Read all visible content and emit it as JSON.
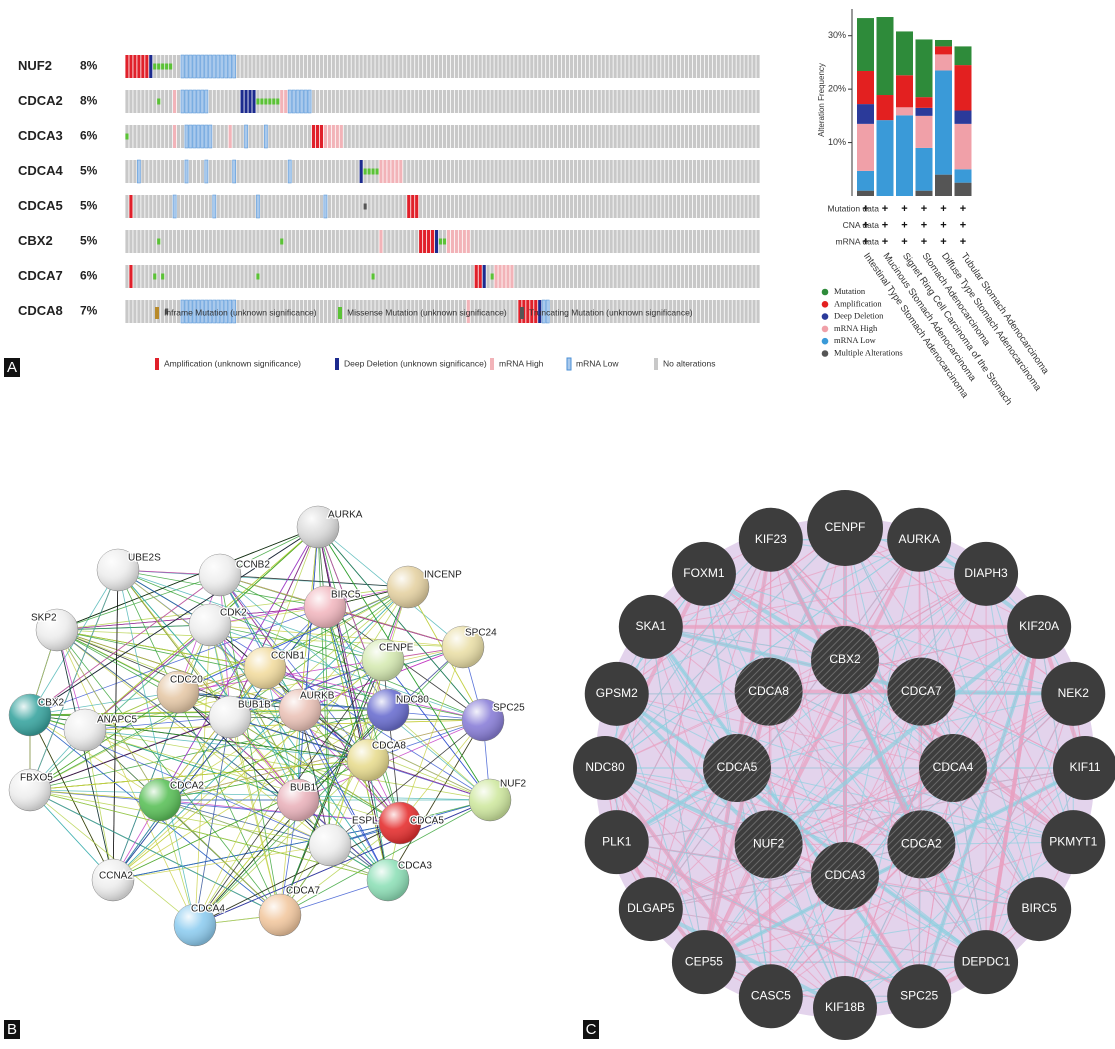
{
  "panel_labels": [
    "A",
    "B",
    "C"
  ],
  "oncoprint": {
    "genes": [
      {
        "name": "NUF2",
        "pct": "8%",
        "segments": [
          [
            0,
            6,
            3
          ],
          [
            6,
            6,
            4
          ],
          [
            7,
            11,
            1
          ],
          [
            14,
            27,
            6
          ]
        ]
      },
      {
        "name": "CDCA2",
        "pct": "8%",
        "segments": [
          [
            8,
            8,
            1
          ],
          [
            12,
            12,
            5
          ],
          [
            14,
            20,
            6
          ],
          [
            29,
            32,
            4
          ],
          [
            33,
            38,
            1
          ],
          [
            39,
            40,
            5
          ],
          [
            41,
            46,
            6
          ]
        ]
      },
      {
        "name": "CDCA3",
        "pct": "6%",
        "segments": [
          [
            0,
            0,
            1
          ],
          [
            12,
            12,
            5
          ],
          [
            15,
            21,
            6
          ],
          [
            26,
            26,
            5
          ],
          [
            30,
            30,
            6
          ],
          [
            35,
            35,
            6
          ],
          [
            47,
            49,
            3
          ],
          [
            50,
            54,
            5
          ]
        ]
      },
      {
        "name": "CDCA4",
        "pct": "5%",
        "segments": [
          [
            3,
            3,
            6
          ],
          [
            15,
            15,
            6
          ],
          [
            20,
            20,
            6
          ],
          [
            27,
            27,
            6
          ],
          [
            41,
            41,
            6
          ],
          [
            59,
            59,
            4
          ],
          [
            60,
            63,
            1
          ],
          [
            64,
            69,
            5
          ]
        ]
      },
      {
        "name": "CDCA5",
        "pct": "5%",
        "segments": [
          [
            1,
            1,
            3
          ],
          [
            12,
            12,
            6
          ],
          [
            22,
            22,
            6
          ],
          [
            33,
            33,
            6
          ],
          [
            50,
            50,
            6
          ],
          [
            60,
            60,
            2
          ],
          [
            71,
            73,
            3
          ]
        ]
      },
      {
        "name": "CBX2",
        "pct": "5%",
        "segments": [
          [
            8,
            8,
            1
          ],
          [
            39,
            39,
            1
          ],
          [
            64,
            64,
            5
          ],
          [
            74,
            77,
            3
          ],
          [
            78,
            78,
            4
          ],
          [
            79,
            80,
            1
          ],
          [
            81,
            86,
            5
          ]
        ]
      },
      {
        "name": "CDCA7",
        "pct": "6%",
        "segments": [
          [
            1,
            1,
            3
          ],
          [
            7,
            7,
            1
          ],
          [
            9,
            9,
            1
          ],
          [
            33,
            33,
            1
          ],
          [
            62,
            62,
            1
          ],
          [
            88,
            89,
            3
          ],
          [
            90,
            90,
            4
          ],
          [
            92,
            92,
            1
          ],
          [
            93,
            97,
            5
          ]
        ]
      },
      {
        "name": "CDCA8",
        "pct": "7%",
        "segments": [
          [
            10,
            10,
            2
          ],
          [
            14,
            27,
            6
          ],
          [
            86,
            86,
            5
          ],
          [
            99,
            103,
            3
          ],
          [
            104,
            104,
            4
          ],
          [
            105,
            106,
            6
          ]
        ]
      }
    ],
    "legend": [
      {
        "label": "Inframe Mutation (unknown significance)",
        "color": "#b88a2a"
      },
      {
        "label": "Missense Mutation (unknown significance)",
        "color": "#5bc236"
      },
      {
        "label": "Truncating Mutation (unknown significance)",
        "color": "#555555"
      },
      {
        "label": "Amplification (unknown significance)",
        "color": "#e0202a"
      },
      {
        "label": "Deep Deletion (unknown significance)",
        "color": "#1c2a8e"
      },
      {
        "label": "mRNA High",
        "color": "#f2b3b8"
      },
      {
        "label": "mRNA Low",
        "color": "#a9c9ec"
      },
      {
        "label": "No alterations",
        "color": "#c8c8c8"
      }
    ]
  },
  "chart_data": {
    "type": "bar",
    "y_label": "Alteration Frequency",
    "categories": [
      "Intestinal Type Stomach Adenocarcinoma",
      "Mucinous Stomach Adenocarcinoma",
      "Signet Ring Cell Carcinoma of the Stomach",
      "Stomach Adenocarcinoma",
      "Diffuse Type Stomach Adenocarcinoma",
      "Tubular Stomach Adenocarcinoma"
    ],
    "series": [
      {
        "name": "Mutation",
        "color": "#2e8b3a",
        "values": [
          9.9,
          14.6,
          8.2,
          10.8,
          1.2,
          3.5
        ]
      },
      {
        "name": "Amplification",
        "color": "#e32020",
        "values": [
          6.2,
          4.7,
          6,
          2,
          1.5,
          8.5
        ]
      },
      {
        "name": "Deep Deletion",
        "color": "#2b3a9a",
        "values": [
          3.7,
          0,
          0,
          1.5,
          0,
          2.5
        ]
      },
      {
        "name": "mRNA High",
        "color": "#f0a0a8",
        "values": [
          8.8,
          0,
          1.5,
          6,
          3,
          8.5
        ]
      },
      {
        "name": "mRNA Low",
        "color": "#3a9ad8",
        "values": [
          3.7,
          14.2,
          15.1,
          8,
          19.5,
          2.5
        ]
      },
      {
        "name": "Multiple Alterations",
        "color": "#555555",
        "values": [
          1,
          0,
          0,
          1,
          4,
          2.5
        ]
      }
    ],
    "ylim": [
      0,
      35
    ],
    "yticks": [
      {
        "value": 10,
        "label": "10%"
      },
      {
        "value": 20,
        "label": "20%"
      },
      {
        "value": 30,
        "label": "30%"
      }
    ],
    "data_rows": [
      "Mutation data",
      "CNA data",
      "mRNA data"
    ],
    "marker": "+"
  },
  "string_network": {
    "nodes": [
      "AURKA",
      "UBE2S",
      "CCNB2",
      "BIRC5",
      "INCENP",
      "SKP2",
      "CDK2",
      "CENPE",
      "SPC24",
      "CCNB1",
      "CDC20",
      "BUB1B",
      "AURKB",
      "NDC80",
      "SPC25",
      "CBX2",
      "ANAPC5",
      "CDCA8",
      "NUF2",
      "FBXO5",
      "CDCA2",
      "BUB1",
      "ESPL1",
      "CDCA5",
      "CCNA2",
      "CDCA3",
      "CDCA7",
      "CDCA4"
    ]
  },
  "genemania_network": {
    "query_nodes": [
      "CBX2",
      "CDCA7",
      "CDCA4",
      "CDCA2",
      "CDCA3",
      "NUF2",
      "CDCA5",
      "CDCA8"
    ],
    "outer_nodes": [
      "CENPF",
      "AURKA",
      "DIAPH3",
      "KIF20A",
      "NEK2",
      "KIF11",
      "PKMYT1",
      "BIRC5",
      "DEPDC1",
      "SPC25",
      "KIF18B",
      "CASC5",
      "CEP55",
      "DLGAP5",
      "PLK1",
      "NDC80",
      "GPSM2",
      "SKA1",
      "FOXM1",
      "KIF23"
    ]
  }
}
